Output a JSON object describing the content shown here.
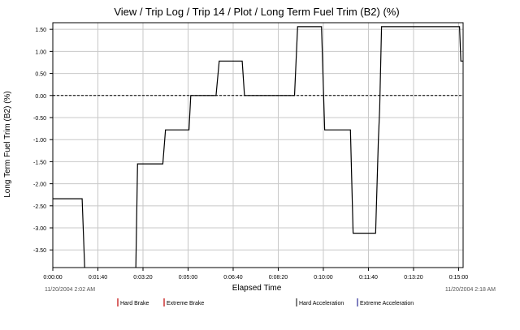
{
  "chart_data": {
    "type": "line",
    "title": "View / Trip Log / Trip 14 / Plot / Long Term Fuel Trim (B2) (%)",
    "xlabel": "Elapsed Time",
    "ylabel": "Long Term Fuel Trim (B2) (%)",
    "x_unit": "seconds elapsed",
    "xlim": [
      0,
      910
    ],
    "ylim": [
      -3.9,
      1.65
    ],
    "x_ticks": [
      {
        "value": 0,
        "label": "0:00:00"
      },
      {
        "value": 100,
        "label": "0:01:40"
      },
      {
        "value": 200,
        "label": "0:03:20"
      },
      {
        "value": 300,
        "label": "0:05:00"
      },
      {
        "value": 400,
        "label": "0:06:40"
      },
      {
        "value": 500,
        "label": "0:08:20"
      },
      {
        "value": 600,
        "label": "0:10:00"
      },
      {
        "value": 700,
        "label": "0:11:40"
      },
      {
        "value": 800,
        "label": "0:13:20"
      },
      {
        "value": 900,
        "label": "0:15:00"
      }
    ],
    "y_ticks": [
      {
        "value": 1.5,
        "label": "1.50"
      },
      {
        "value": 1.0,
        "label": "1.00"
      },
      {
        "value": 0.5,
        "label": "0.50"
      },
      {
        "value": 0.0,
        "label": "0.00"
      },
      {
        "value": -0.5,
        "label": "-0.50"
      },
      {
        "value": -1.0,
        "label": "-1.00"
      },
      {
        "value": -1.5,
        "label": "-1.50"
      },
      {
        "value": -2.0,
        "label": "-2.00"
      },
      {
        "value": -2.5,
        "label": "-2.50"
      },
      {
        "value": -3.0,
        "label": "-3.00"
      },
      {
        "value": -3.5,
        "label": "-3.50"
      }
    ],
    "grid": true,
    "reference_line": {
      "y": 0,
      "style": "dashed"
    },
    "start_time": "11/20/2004 2:02 AM",
    "end_time": "11/20/2004 2:18 AM",
    "series": [
      {
        "color": "#000000",
        "x": [
          0,
          65,
          71,
          184,
          188,
          244,
          250,
          302,
          306,
          362,
          369,
          420,
          425,
          536,
          543,
          596,
          603,
          660,
          666,
          716,
          722,
          725,
          729,
          902,
          905,
          910
        ],
        "y": [
          -2.34,
          -2.34,
          -4.0,
          -4.0,
          -1.55,
          -1.55,
          -0.78,
          -0.78,
          0.0,
          0.0,
          0.78,
          0.78,
          0.0,
          0.0,
          1.56,
          1.56,
          -0.78,
          -0.78,
          -3.12,
          -3.12,
          -1.0,
          -0.3,
          1.56,
          1.56,
          0.78,
          0.78
        ]
      }
    ]
  },
  "legend": {
    "items": [
      {
        "label": "Hard Brake",
        "color": "#cc3333"
      },
      {
        "label": "Extreme Brake",
        "color": "#cc3333"
      },
      {
        "label": "Hard Acceleration",
        "color": "#555555"
      },
      {
        "label": "Extreme Acceleration",
        "color": "#5555aa"
      }
    ]
  }
}
